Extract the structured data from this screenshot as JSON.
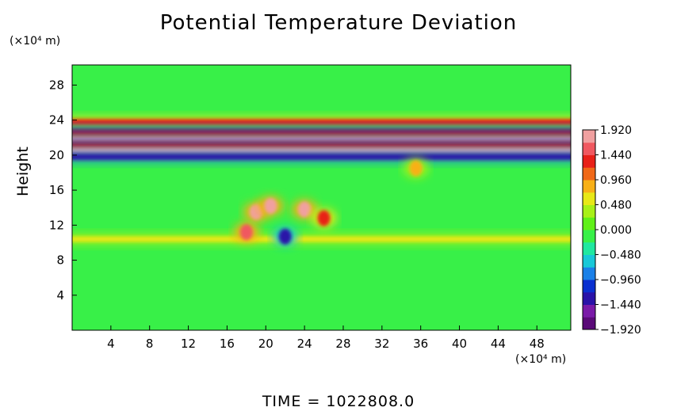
{
  "chart_data": {
    "type": "heatmap",
    "title": "Potential Temperature Deviation",
    "ylabel": "Height",
    "y_unit": "(×10⁴ m)",
    "x_unit": "(×10⁴ m)",
    "footer": "TIME  =  1022808.0",
    "xlim": [
      0,
      51.5
    ],
    "ylim": [
      0,
      30.3
    ],
    "x_ticks": [
      4,
      8,
      12,
      16,
      20,
      24,
      28,
      32,
      36,
      40,
      44,
      48
    ],
    "y_ticks": [
      4,
      8,
      12,
      16,
      20,
      24,
      28
    ],
    "colorbar": {
      "range": [
        -1.92,
        1.92
      ],
      "tick_values": [
        1.92,
        1.44,
        0.96,
        0.48,
        0.0,
        -0.48,
        -0.96,
        -1.44,
        -1.92
      ],
      "tick_labels": [
        "1.920",
        "1.440",
        "0.960",
        "0.480",
        "0.000",
        "−0.480",
        "−0.960",
        "−1.440",
        "−1.920"
      ],
      "colors": [
        "#5a0a78",
        "#7a1aa8",
        "#2a12a8",
        "#0a30d0",
        "#1a80e8",
        "#18c8d8",
        "#20e8a0",
        "#38f048",
        "#60f018",
        "#a8f018",
        "#e8e818",
        "#f8b018",
        "#f06818",
        "#e82018",
        "#f05860",
        "#f0a0a0"
      ]
    },
    "bands": [
      {
        "y_center": 23.8,
        "value": 1.2
      },
      {
        "y_center": 22.6,
        "value": -1.8
      },
      {
        "y_center": 21.8,
        "value": 1.9
      },
      {
        "y_center": 21.1,
        "value": -1.9
      },
      {
        "y_center": 20.5,
        "value": 1.9
      },
      {
        "y_center": 19.8,
        "value": -1.4
      },
      {
        "y_center": 10.4,
        "value": 0.6
      }
    ],
    "features": [
      {
        "x": 19.0,
        "y": 13.5,
        "value": 1.9
      },
      {
        "x": 20.5,
        "y": 14.2,
        "value": 1.9
      },
      {
        "x": 24.0,
        "y": 13.8,
        "value": 1.9
      },
      {
        "x": 18.0,
        "y": 11.2,
        "value": 1.6
      },
      {
        "x": 26.0,
        "y": 12.8,
        "value": 1.2
      },
      {
        "x": 35.5,
        "y": 18.5,
        "value": 0.9
      },
      {
        "x": 22.0,
        "y": 10.7,
        "value": -1.4
      }
    ]
  }
}
